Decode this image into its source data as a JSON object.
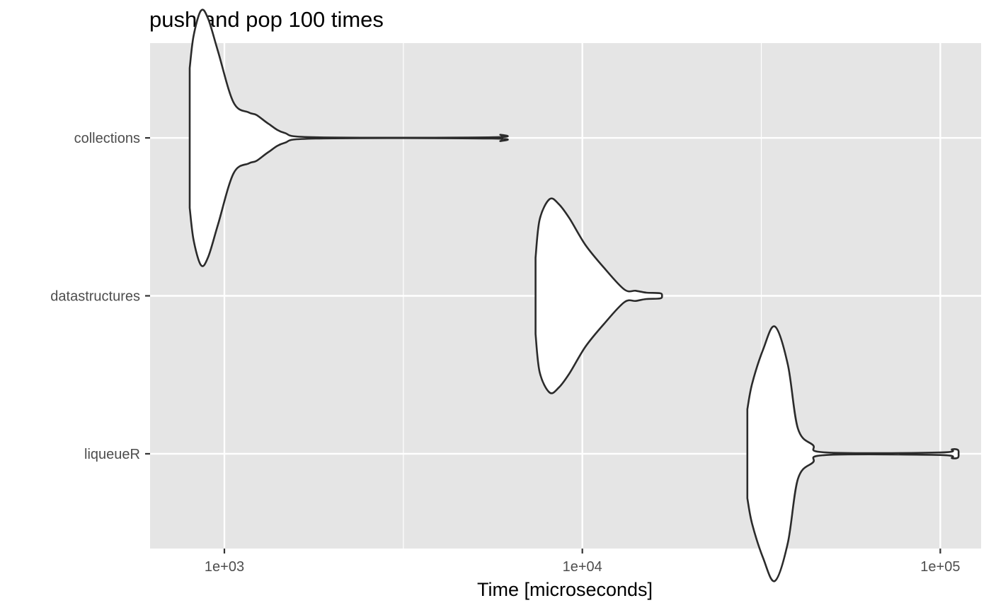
{
  "chart_data": {
    "type": "violin",
    "title": "push and pop 100 times",
    "xlabel": "Time [microseconds]",
    "ylabel": "",
    "x_scale": "log10",
    "xlim": [
      620,
      130000
    ],
    "x_ticks": [
      1000,
      10000,
      100000
    ],
    "x_tick_labels": [
      "1e+03",
      "1e+04",
      "1e+05"
    ],
    "x_minor_ticks": [
      3162.28,
      31622.78
    ],
    "categories": [
      "collections",
      "datastructures",
      "liqueueR"
    ],
    "grid": true,
    "panel_background": "#e5e5e5",
    "violin_fill": "#ffffff",
    "violin_outline": "#2b2b2b",
    "series": [
      {
        "category": "collections",
        "density_profile": [
          [
            800,
            0.55
          ],
          [
            820,
            0.8
          ],
          [
            860,
            1.0
          ],
          [
            900,
            0.94
          ],
          [
            960,
            0.68
          ],
          [
            1060,
            0.28
          ],
          [
            1170,
            0.2
          ],
          [
            1230,
            0.18
          ],
          [
            1330,
            0.11
          ],
          [
            1470,
            0.04
          ],
          [
            1800,
            0.005
          ],
          [
            5600,
            0.005
          ],
          [
            5900,
            0.025
          ],
          [
            5980,
            0.0
          ]
        ]
      },
      {
        "category": "datastructures",
        "density_profile": [
          [
            7400,
            0.3
          ],
          [
            7600,
            0.6
          ],
          [
            8100,
            0.76
          ],
          [
            8600,
            0.72
          ],
          [
            9200,
            0.61
          ],
          [
            10200,
            0.4
          ],
          [
            11500,
            0.22
          ],
          [
            13100,
            0.05
          ],
          [
            14100,
            0.04
          ],
          [
            15100,
            0.025
          ],
          [
            16500,
            0.02
          ],
          [
            16700,
            0.0
          ]
        ]
      },
      {
        "category": "liqueueR",
        "density_profile": [
          [
            28900,
            0.35
          ],
          [
            29800,
            0.55
          ],
          [
            32000,
            0.82
          ],
          [
            34500,
            1.0
          ],
          [
            37500,
            0.7
          ],
          [
            40000,
            0.2
          ],
          [
            44000,
            0.07
          ],
          [
            48000,
            0.01
          ],
          [
            100000,
            0.01
          ],
          [
            108000,
            0.035
          ],
          [
            112000,
            0.03
          ],
          [
            112500,
            0.0
          ]
        ]
      }
    ]
  }
}
